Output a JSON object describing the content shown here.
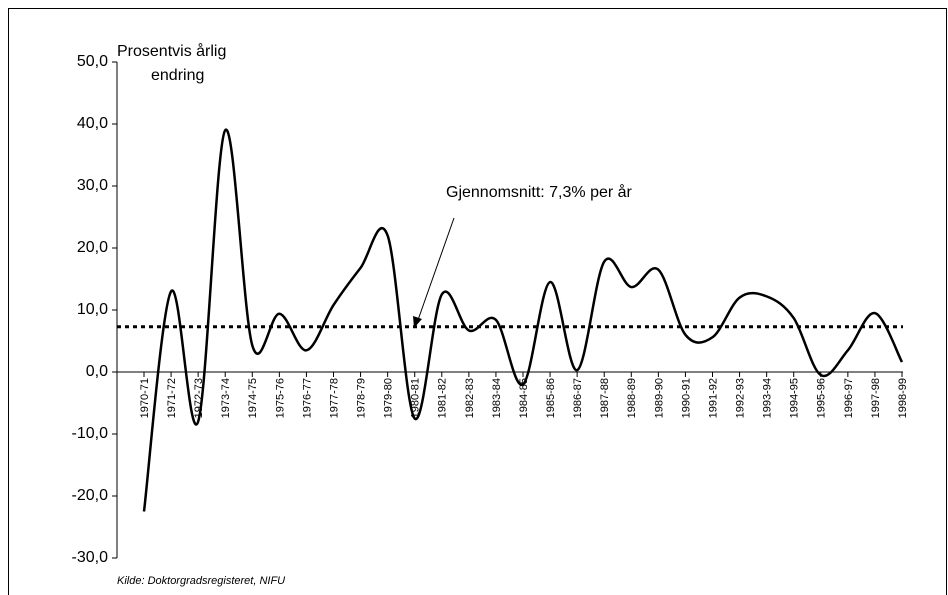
{
  "chart_data": {
    "type": "line",
    "y_label": [
      "Prosentvis årlig",
      "endring"
    ],
    "annotation": "Gjennomsnitt: 7,3% per år",
    "average": 7.3,
    "source": "Kilde: Doktorgradsregisteret, NIFU",
    "categories": [
      "1970-71",
      "1971-72",
      "1972-73",
      "1973-74",
      "1974-75",
      "1975-76",
      "1976-77",
      "1977-78",
      "1978-79",
      "1979-80",
      "1980-81",
      "1981-82",
      "1982-83",
      "1983-84",
      "1984-85",
      "1985-86",
      "1986-87",
      "1987-88",
      "1988-89",
      "1989-90",
      "1990-91",
      "1991-92",
      "1992-93",
      "1993-94",
      "1994-95",
      "1995-96",
      "1996-97",
      "1997-98",
      "1998-99"
    ],
    "values": [
      -22.5,
      13,
      -8,
      39,
      4.3,
      9.4,
      3.5,
      10.8,
      16.8,
      22,
      -7.5,
      12.5,
      6.7,
      8.4,
      -2,
      14.5,
      0.3,
      17.8,
      13.7,
      16.5,
      6,
      5.6,
      12,
      12.2,
      8.7,
      -0.5,
      3.5,
      9.5,
      1.6
    ],
    "color": "#000000",
    "ylim": [
      -30,
      50
    ],
    "yticks": [
      {
        "value": -30,
        "label": "-30,0"
      },
      {
        "value": -20,
        "label": "-20,0"
      },
      {
        "value": -10,
        "label": "-10,0"
      },
      {
        "value": 0,
        "label": "0,0"
      },
      {
        "value": 10,
        "label": "10,0"
      },
      {
        "value": 20,
        "label": "20,0"
      },
      {
        "value": 30,
        "label": "30,0"
      },
      {
        "value": 40,
        "label": "40,0"
      },
      {
        "value": 50,
        "label": "50,0"
      }
    ]
  }
}
